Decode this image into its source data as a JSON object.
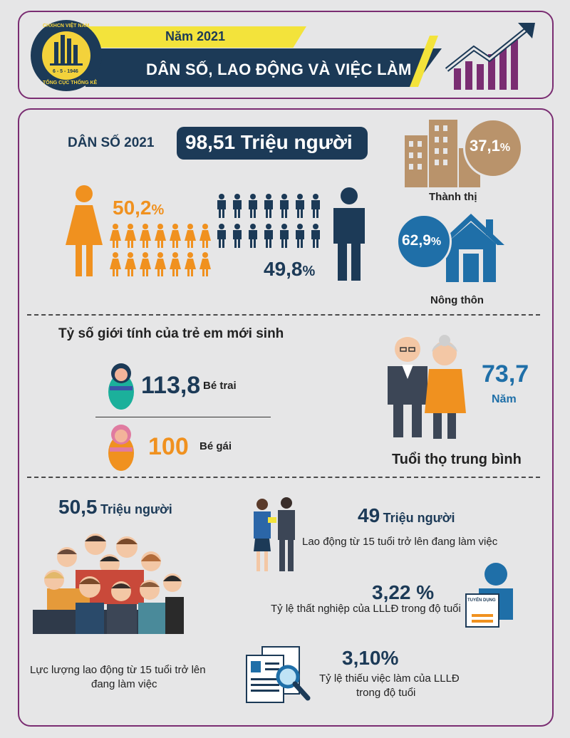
{
  "header": {
    "logo": {
      "top_text": "CHXHCN VIỆT NAM",
      "bottom_text": "TỔNG CỤC THỐNG KÊ",
      "date": "6 - 5 - 1946"
    },
    "year": "Năm 2021",
    "title": "DÂN SỐ, LAO ĐỘNG VÀ VIỆC LÀM"
  },
  "population": {
    "label": "DÂN SỐ 2021",
    "total": "98,51 Triệu người",
    "female_pct": "50,2",
    "male_pct": "49,8",
    "pct_sign": "%",
    "urban_pct": "37,1",
    "urban_label": "Thành thị",
    "rural_pct": "62,9",
    "rural_label": "Nông thôn"
  },
  "sex_ratio": {
    "title": "Tỷ số giới tính của trẻ em mới sinh",
    "boys_value": "113,8",
    "boys_label": "Bé trai",
    "girls_value": "100",
    "girls_label": "Bé gái"
  },
  "life_expectancy": {
    "value": "73,7",
    "unit": "Năm",
    "label": "Tuổi thọ trung bình"
  },
  "labour": {
    "force_value": "50,5",
    "force_unit": "Triệu người",
    "force_desc_line1": "Lực lượng lao động từ 15 tuổi trở lên",
    "force_desc_line2": "đang làm việc",
    "employed_value": "49",
    "employed_unit": "Triệu người",
    "employed_desc": "Lao động từ 15 tuổi trở lên đang làm việc",
    "unemployment_value": "3,22 %",
    "unemployment_desc": "Tỷ lệ thất nghiệp của LLLĐ trong độ tuổi",
    "recruit_sign": "TUYỂN DỤNG",
    "underemployment_value": "3,10%",
    "underemployment_desc_line1": "Tỷ lệ thiếu việc làm của LLLĐ",
    "underemployment_desc_line2": "trong độ tuổi"
  },
  "colors": {
    "navy": "#1c3a57",
    "orange": "#f0911f",
    "blue": "#1f6fa8",
    "tan": "#b9936b",
    "yellow": "#f3e33b",
    "purple": "#7a2d72"
  }
}
